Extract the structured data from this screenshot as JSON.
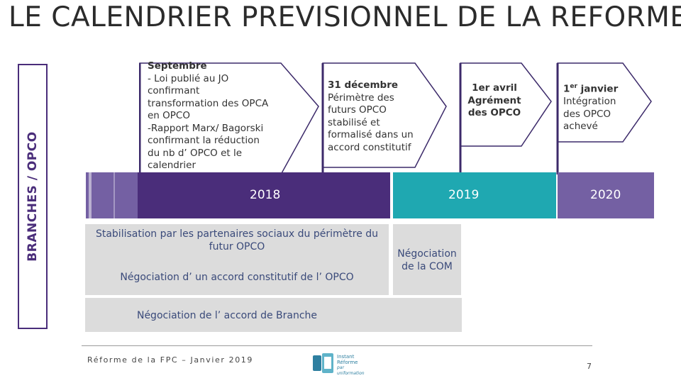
{
  "title": "LE CALENDRIER PREVISIONNEL DE LA REFORME",
  "side_label": "BRANCHES / OPCO",
  "callouts": [
    {
      "head": "Septembre",
      "lines": [
        "- Loi publié au JO",
        "confirmant",
        "transformation des OPCA",
        "en OPCO",
        "-Rapport Marx/ Bagorski",
        "confirmant la réduction",
        "du nb d’ OPCO et le",
        "calendrier"
      ]
    },
    {
      "head": "31 décembre",
      "lines": [
        "Périmètre des",
        "futurs OPCO",
        "stabilisé et",
        "formalisé dans un",
        "accord constitutif"
      ]
    },
    {
      "head": "1er avril",
      "lines": [
        "Agrément",
        "des OPCO"
      ]
    },
    {
      "head_main": "1",
      "head_sup": "er",
      "head_rest": " janvier",
      "lines": [
        "Intégration",
        "des OPCO",
        "achevé"
      ]
    }
  ],
  "years": [
    "2018",
    "2019",
    "2020"
  ],
  "boxes": {
    "stabilisation": "Stabilisation par les partenaires sociaux du périmètre du futur OPCO",
    "negociation_constitutif": "Négociation d’ un accord constitutif de l’ OPCO",
    "negociation_com": "Négociation de la COM",
    "negociation_branche": "Négociation de l’ accord de Branche"
  },
  "footer": {
    "text": "Réforme de la FPC – Janvier 2019",
    "page": "7",
    "logo_lines": [
      "Instant",
      "Réforme",
      "par uniformation"
    ]
  },
  "colors": {
    "purple_dark": "#4a2d7a",
    "purple_mid": "#5b3f8f",
    "purple_light": "#7460a3",
    "teal": "#1fa8b1",
    "grey_box": "#dcdcdc",
    "callout_border": "#3c2a6a"
  }
}
